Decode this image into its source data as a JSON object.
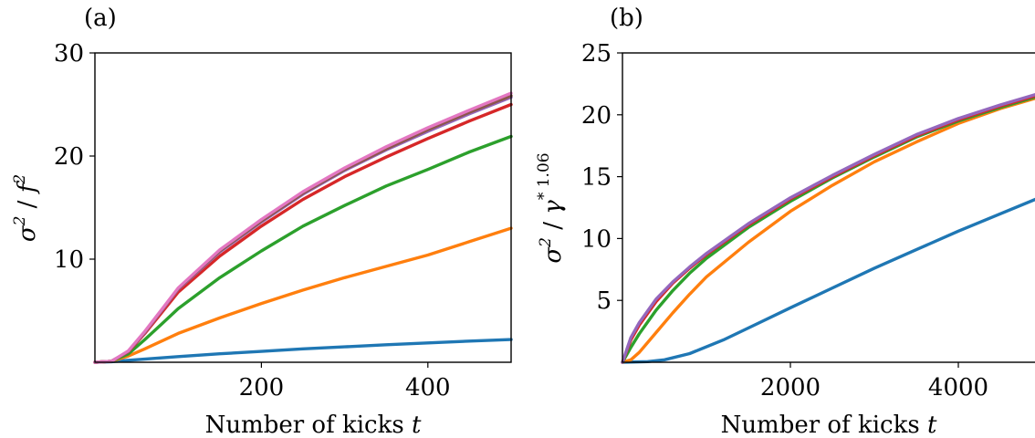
{
  "chart_data": [
    {
      "type": "line",
      "panel_label": "(a)",
      "xlabel": "Number of kicks",
      "xlabel_var": "t",
      "ylabel_html": "σ² / f²",
      "xlim": [
        0,
        500
      ],
      "ylim": [
        0,
        30
      ],
      "xticks": [
        200,
        400
      ],
      "yticks": [
        10,
        20,
        30
      ],
      "grid": false,
      "series": [
        {
          "color": "#1f77b4",
          "x": [
            0,
            20,
            50,
            100,
            150,
            200,
            250,
            300,
            350,
            400,
            450,
            500
          ],
          "y": [
            0,
            0.05,
            0.25,
            0.55,
            0.82,
            1.05,
            1.3,
            1.5,
            1.7,
            1.88,
            2.05,
            2.2
          ]
        },
        {
          "color": "#ff7f0e",
          "x": [
            0,
            20,
            40,
            60,
            100,
            150,
            200,
            250,
            300,
            350,
            400,
            450,
            500
          ],
          "y": [
            0,
            0.1,
            0.6,
            1.3,
            2.8,
            4.3,
            5.7,
            7.0,
            8.2,
            9.3,
            10.4,
            11.7,
            13.0
          ]
        },
        {
          "color": "#2ca02c",
          "x": [
            0,
            20,
            40,
            60,
            80,
            100,
            150,
            200,
            250,
            300,
            350,
            400,
            450,
            500
          ],
          "y": [
            0,
            0.1,
            0.8,
            2.2,
            3.7,
            5.2,
            8.2,
            10.8,
            13.2,
            15.2,
            17.1,
            18.7,
            20.4,
            21.9
          ]
        },
        {
          "color": "#d62728",
          "x": [
            0,
            20,
            40,
            60,
            80,
            100,
            150,
            200,
            250,
            300,
            350,
            400,
            450,
            500
          ],
          "y": [
            0,
            0.1,
            1.0,
            2.8,
            4.8,
            6.8,
            10.3,
            13.2,
            15.8,
            18.0,
            19.9,
            21.7,
            23.4,
            25.0
          ]
        },
        {
          "color": "#9467bd",
          "x": [
            0,
            20,
            40,
            60,
            80,
            100,
            150,
            200,
            250,
            300,
            350,
            400,
            450,
            500
          ],
          "y": [
            0,
            0.1,
            1.05,
            2.9,
            5.0,
            7.1,
            10.7,
            13.6,
            16.3,
            18.6,
            20.6,
            22.4,
            24.1,
            25.7
          ]
        },
        {
          "color": "#8c564b",
          "x": [
            0,
            20,
            40,
            60,
            80,
            100,
            150,
            200,
            250,
            300,
            350,
            400,
            450,
            500
          ],
          "y": [
            0,
            0.1,
            1.05,
            2.95,
            5.05,
            7.15,
            10.8,
            13.7,
            16.4,
            18.7,
            20.7,
            22.55,
            24.25,
            25.85
          ]
        },
        {
          "color": "#e377c2",
          "x": [
            0,
            20,
            40,
            60,
            80,
            100,
            150,
            200,
            250,
            300,
            350,
            400,
            450,
            500
          ],
          "y": [
            0,
            0.1,
            1.1,
            3.0,
            5.1,
            7.2,
            10.9,
            13.85,
            16.55,
            18.85,
            20.9,
            22.75,
            24.45,
            26.1
          ]
        }
      ]
    },
    {
      "type": "line",
      "panel_label": "(b)",
      "xlabel": "Number of kicks",
      "xlabel_var": "t",
      "ylabel_html": "σ² / γ* 1.06",
      "xlim": [
        0,
        5000
      ],
      "ylim": [
        0,
        25
      ],
      "xticks": [
        2000,
        4000
      ],
      "yticks": [
        5,
        10,
        15,
        20,
        25
      ],
      "grid": false,
      "series": [
        {
          "color": "#1f77b4",
          "x": [
            0,
            300,
            500,
            800,
            1200,
            1600,
            2000,
            2500,
            3000,
            3500,
            4000,
            4500,
            5000
          ],
          "y": [
            0,
            0.05,
            0.2,
            0.7,
            1.8,
            3.1,
            4.4,
            6.0,
            7.6,
            9.1,
            10.6,
            12.0,
            13.4
          ]
        },
        {
          "color": "#ff7f0e",
          "x": [
            0,
            100,
            200,
            400,
            600,
            800,
            1000,
            1500,
            2000,
            2500,
            3000,
            3500,
            4000,
            4500,
            5000
          ],
          "y": [
            0,
            0.2,
            0.8,
            2.4,
            4.0,
            5.5,
            6.9,
            9.7,
            12.2,
            14.3,
            16.2,
            17.8,
            19.3,
            20.5,
            21.5
          ]
        },
        {
          "color": "#2ca02c",
          "x": [
            0,
            100,
            200,
            400,
            600,
            800,
            1000,
            1500,
            2000,
            2500,
            3000,
            3500,
            4000,
            4500,
            5000
          ],
          "y": [
            0,
            1.2,
            2.3,
            4.2,
            5.8,
            7.2,
            8.4,
            10.9,
            13.0,
            14.9,
            16.6,
            18.2,
            19.5,
            20.6,
            21.6
          ]
        },
        {
          "color": "#d62728",
          "x": [
            0,
            100,
            200,
            400,
            600,
            800,
            1000,
            1500,
            2000,
            2500,
            3000,
            3500,
            4000,
            4500,
            5000
          ],
          "y": [
            0,
            1.8,
            3.0,
            4.9,
            6.4,
            7.6,
            8.7,
            11.1,
            13.2,
            15.0,
            16.7,
            18.3,
            19.6,
            20.7,
            21.7
          ]
        },
        {
          "color": "#9467bd",
          "x": [
            0,
            100,
            200,
            400,
            600,
            800,
            1000,
            1500,
            2000,
            2500,
            3000,
            3500,
            4000,
            4500,
            5000
          ],
          "y": [
            0,
            2.0,
            3.2,
            5.1,
            6.5,
            7.7,
            8.8,
            11.2,
            13.3,
            15.1,
            16.8,
            18.4,
            19.7,
            20.8,
            21.8
          ]
        }
      ]
    }
  ]
}
